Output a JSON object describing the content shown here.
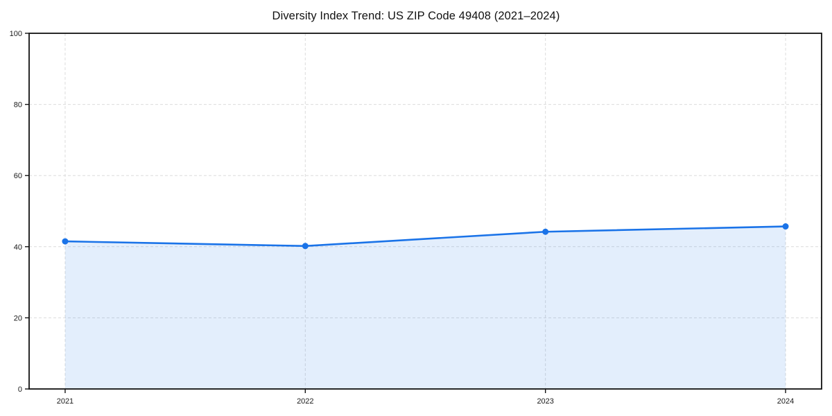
{
  "chart_data": {
    "type": "area",
    "title": "Diversity Index Trend: US ZIP Code 49408 (2021–2024)",
    "categories": [
      "2021",
      "2022",
      "2023",
      "2024"
    ],
    "series": [
      {
        "name": "Diversity Index",
        "values": [
          41.5,
          40.2,
          44.2,
          45.7
        ]
      }
    ],
    "xlabel": "",
    "ylabel": "",
    "ylim": [
      0,
      100
    ],
    "yticks": [
      0,
      20,
      40,
      60,
      80,
      100
    ],
    "grid": true,
    "grid_style": "dashed",
    "legend": "none",
    "colors": {
      "line": "#1a73e8",
      "marker": "#1a73e8",
      "fill": "rgba(26,115,232,0.12)",
      "gridline": "#dcdcdc",
      "spine": "#111111",
      "tick_label": "#1a1a1a",
      "background": "#ffffff"
    }
  }
}
